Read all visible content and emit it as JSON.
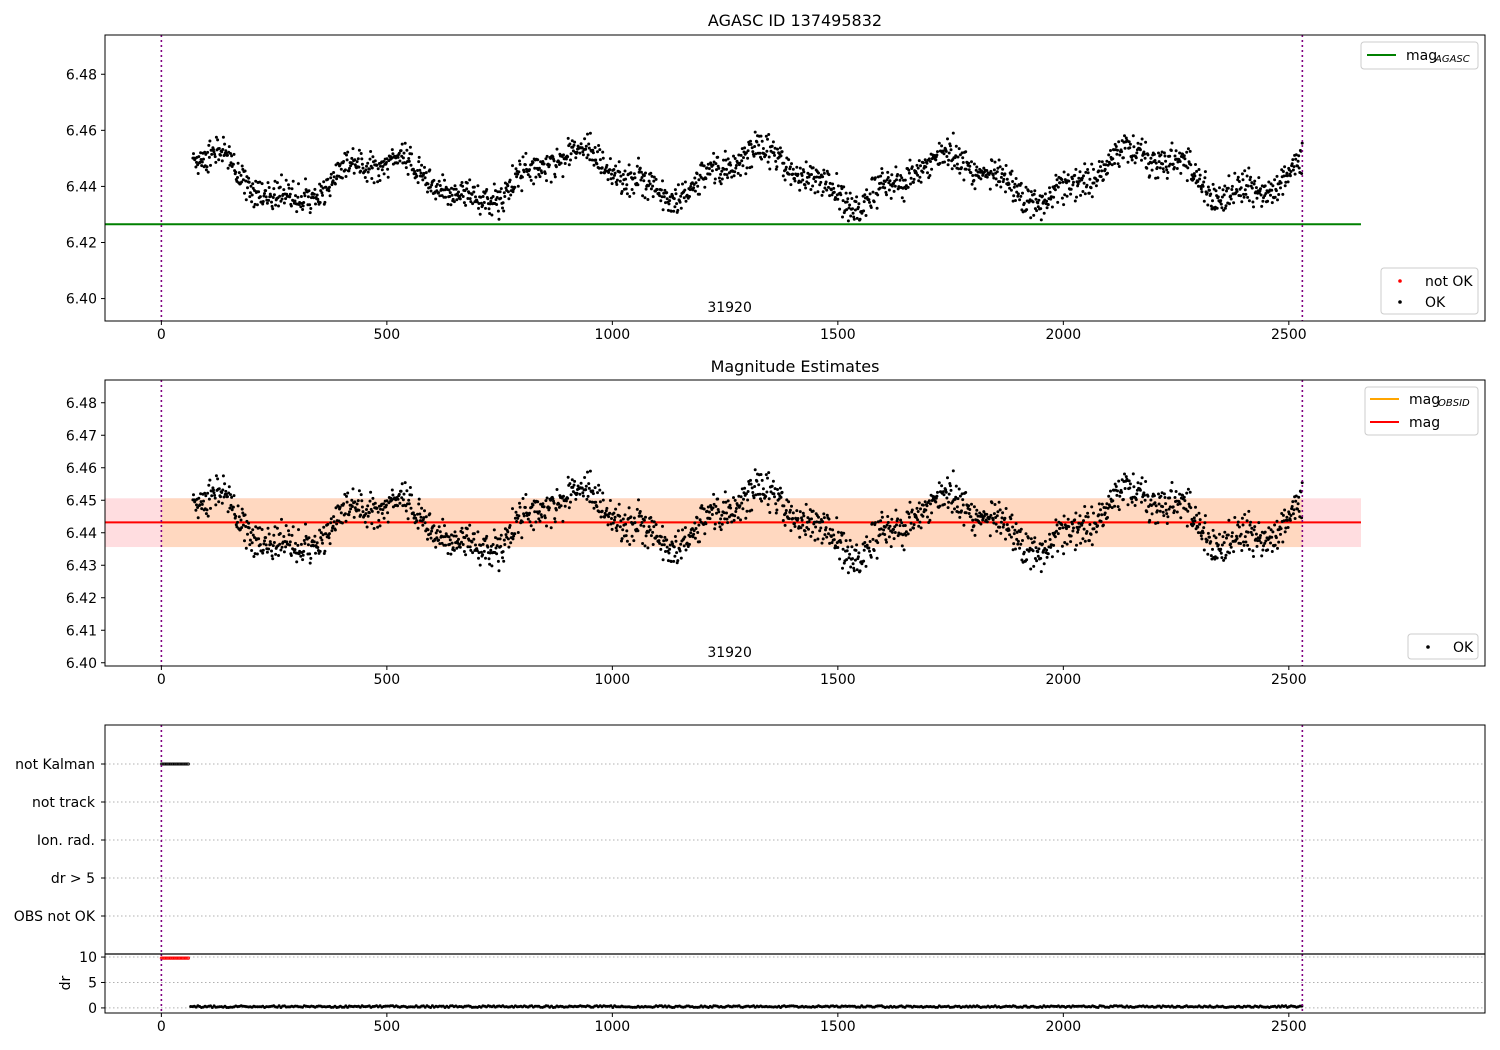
{
  "chart_data": [
    {
      "type": "scatter",
      "title": "AGASC ID 137495832",
      "xlim": [
        -125,
        2935
      ],
      "ylim": [
        6.392,
        6.494
      ],
      "yticks": [
        "6.40",
        "6.42",
        "6.44",
        "6.46",
        "6.48"
      ],
      "ytick_values": [
        6.4,
        6.42,
        6.44,
        6.46,
        6.48
      ],
      "xticks": [
        0,
        500,
        1000,
        1500,
        2000,
        2500
      ],
      "vlines": [
        0,
        2530
      ],
      "hlines": [
        {
          "name": "mag_AGASC",
          "value": 6.4265,
          "color": "#008000",
          "x_from": -125,
          "x_to": 2660
        }
      ],
      "annotation": "31920",
      "series_ok_range": [
        70,
        2530
      ],
      "legend_lines": [
        {
          "label": "mag",
          "subscript": "AGASC",
          "color": "#008000"
        }
      ],
      "legend_points": [
        {
          "label": "not OK",
          "color": "#ff0000"
        },
        {
          "label": "OK",
          "color": "#000000"
        }
      ],
      "colors": {
        "ok": "#000000",
        "not_ok": "#ff0000"
      }
    },
    {
      "type": "scatter",
      "title": "Magnitude Estimates",
      "xlim": [
        -125,
        2935
      ],
      "ylim": [
        6.399,
        6.487
      ],
      "yticks": [
        "6.40",
        "6.41",
        "6.42",
        "6.43",
        "6.44",
        "6.45",
        "6.46",
        "6.47",
        "6.48"
      ],
      "ytick_values": [
        6.4,
        6.41,
        6.42,
        6.43,
        6.44,
        6.45,
        6.46,
        6.47,
        6.48
      ],
      "xticks": [
        0,
        500,
        1000,
        1500,
        2000,
        2500
      ],
      "vlines": [
        0,
        2530
      ],
      "mag_line": {
        "value": 6.4432,
        "color": "#ff0000",
        "x_from": -125,
        "x_to": 2660
      },
      "mag_band": {
        "low": 6.4356,
        "high": 6.4506,
        "color": "#ffdde0"
      },
      "obsid_band": {
        "low": 6.4356,
        "high": 6.4506,
        "x_from": 0,
        "x_to": 2530,
        "color": "#ffd8c0"
      },
      "obsid_line": {
        "value": 6.4432,
        "color": "#ffa500",
        "x_from": 0,
        "x_to": 2530
      },
      "annotation": "31920",
      "legend_lines": [
        {
          "label": "mag",
          "subscript": "OBSID",
          "color": "#ffa500"
        },
        {
          "label": "mag",
          "subscript": "",
          "color": "#ff0000"
        }
      ],
      "legend_points": [
        {
          "label": "OK",
          "color": "#000000"
        }
      ]
    },
    {
      "type": "scatter",
      "title": "",
      "xlim": [
        -125,
        2935
      ],
      "flag_labels": [
        "not Kalman",
        "not track",
        "Ion. rad.",
        "dr > 5",
        "OBS not OK"
      ],
      "flag_segments": [
        {
          "flag": "not Kalman",
          "x_from": 0,
          "x_to": 62
        }
      ],
      "vlines": [
        0,
        2530
      ]
    },
    {
      "type": "scatter",
      "title": "",
      "ylabel": "dr",
      "xlim": [
        -125,
        2935
      ],
      "ylim": [
        -1,
        10.6
      ],
      "yticks": [
        "0",
        "5",
        "10"
      ],
      "ytick_values": [
        0,
        5,
        10
      ],
      "xticks": [
        0,
        500,
        1000,
        1500,
        2000,
        2500
      ],
      "vlines": [
        0,
        2530
      ],
      "segments": [
        {
          "x_from": 0,
          "x_to": 62,
          "y": 9.8,
          "color": "#ff0000"
        },
        {
          "x_from": 65,
          "x_to": 2530,
          "y": 0.25,
          "color": "#000000"
        }
      ]
    }
  ]
}
